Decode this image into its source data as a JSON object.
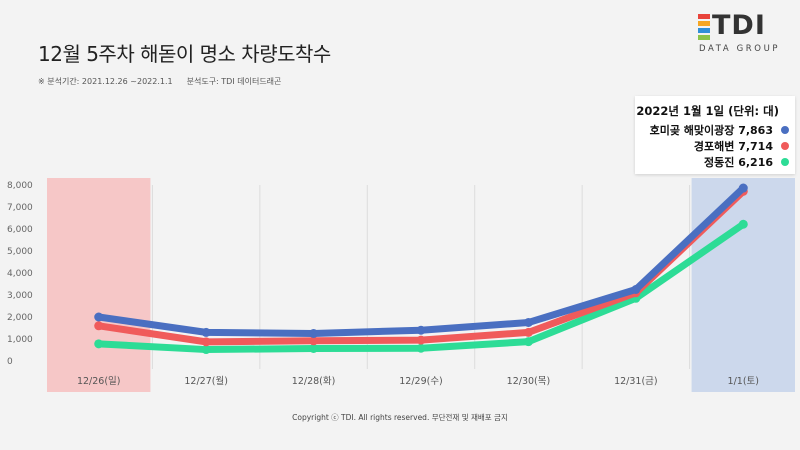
{
  "title": "12월 5주차 해돋이 명소 차량도착수",
  "note": {
    "period": "※ 분석기간: 2021.12.26 ~2022.1.1",
    "tool": "분석도구: TDI 데이터드래곤"
  },
  "logo": {
    "text": "TDI",
    "sub": "DATA GROUP"
  },
  "legend": {
    "title": "2022년 1월 1일 (단위: 대)",
    "items": [
      {
        "label": "호미곶 해맞이광장 7,863",
        "color": "#4a6fc1"
      },
      {
        "label": "경포해변 7,714",
        "color": "#f05b5b"
      },
      {
        "label": "정동진 6,216",
        "color": "#2ddc96"
      }
    ]
  },
  "footer": "Copyright ⓒ TDI. All rights reserved. 무단전재 및 재배포 금지",
  "chart_data": {
    "type": "line",
    "categories": [
      "12/26(일)",
      "12/27(월)",
      "12/28(화)",
      "12/29(수)",
      "12/30(목)",
      "12/31(금)",
      "1/1(토)"
    ],
    "series": [
      {
        "name": "호미곶 해맞이광장",
        "color": "#4a6fc1",
        "values": [
          2000,
          1300,
          1250,
          1400,
          1750,
          3250,
          7863
        ]
      },
      {
        "name": "경포해변",
        "color": "#f05b5b",
        "values": [
          1600,
          870,
          920,
          950,
          1300,
          3100,
          7714
        ]
      },
      {
        "name": "정동진",
        "color": "#2ddc96",
        "values": [
          780,
          520,
          570,
          580,
          880,
          2850,
          6216
        ]
      }
    ],
    "ylim": [
      0,
      8000
    ],
    "yticks": [
      "0",
      "1,000",
      "2,000",
      "3,000",
      "4,000",
      "5,000",
      "6,000",
      "7,000",
      "8,000"
    ],
    "highlights": [
      {
        "category": "12/26(일)",
        "color": "#f6c7c7"
      },
      {
        "category": "1/1(토)",
        "color": "#ccd8ec"
      }
    ],
    "grid": "vertical"
  }
}
